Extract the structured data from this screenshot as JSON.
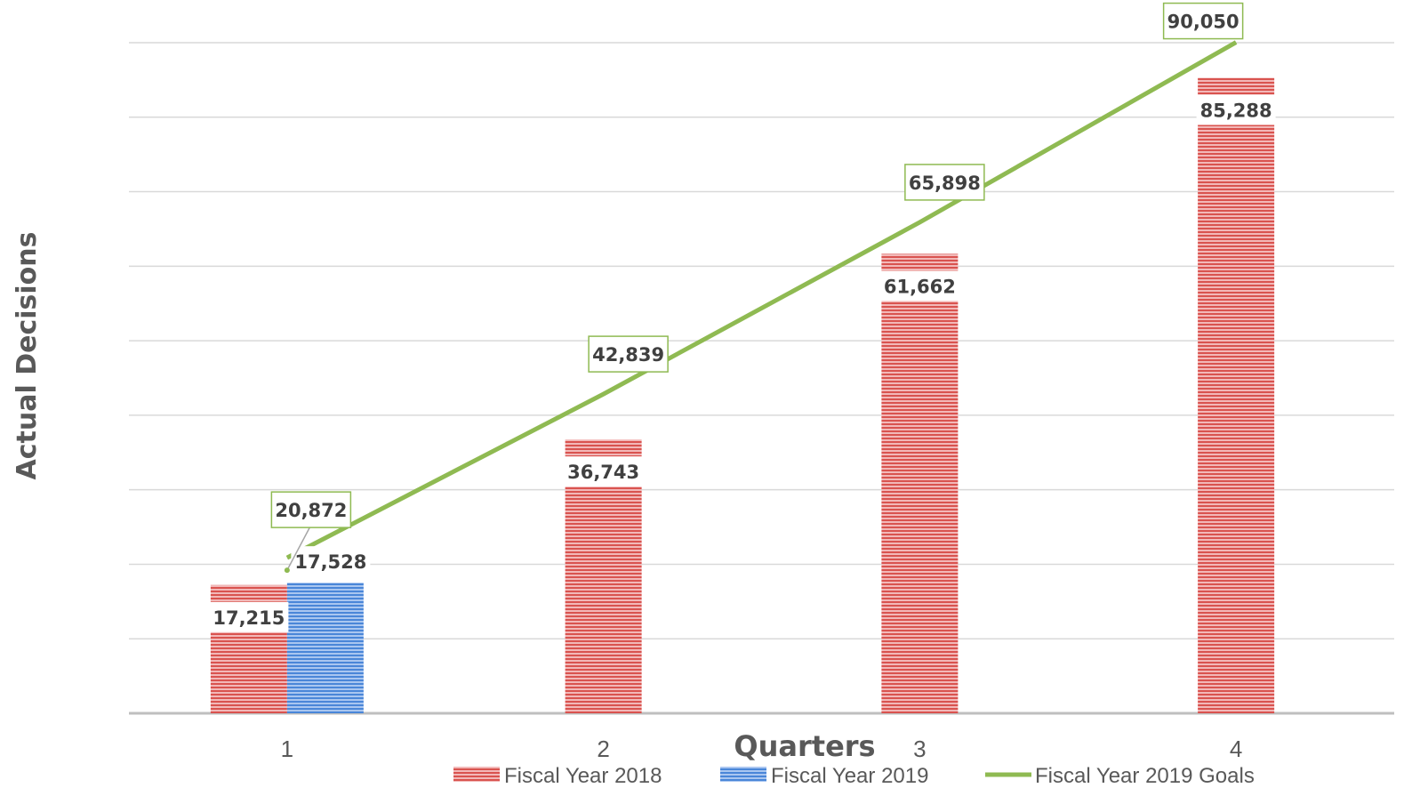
{
  "chart_data": {
    "type": "bar",
    "categories": [
      "1",
      "2",
      "3",
      "4"
    ],
    "series": [
      {
        "name": "Fiscal Year 2018",
        "type": "bar",
        "color": "#e06666",
        "values": [
          17215,
          36743,
          61662,
          85288
        ],
        "labels": [
          "17,215",
          "36,743",
          "61,662",
          "85,288"
        ]
      },
      {
        "name": "Fiscal Year 2019",
        "type": "bar",
        "color": "#6d9eeb",
        "values": [
          17528,
          null,
          null,
          null
        ],
        "labels": [
          "17,528",
          "",
          "",
          ""
        ]
      },
      {
        "name": "Fiscal Year 2019 Goals",
        "type": "line",
        "color": "#8fba52",
        "values": [
          20872,
          42839,
          65898,
          90050
        ],
        "labels": [
          "20,872",
          "42,839",
          "65,898",
          "90,050"
        ]
      }
    ],
    "xlabel": "Quarters",
    "ylabel": "Actual Decisions",
    "ylim": [
      0,
      90000
    ],
    "grid": true,
    "legend_position": "bottom"
  }
}
